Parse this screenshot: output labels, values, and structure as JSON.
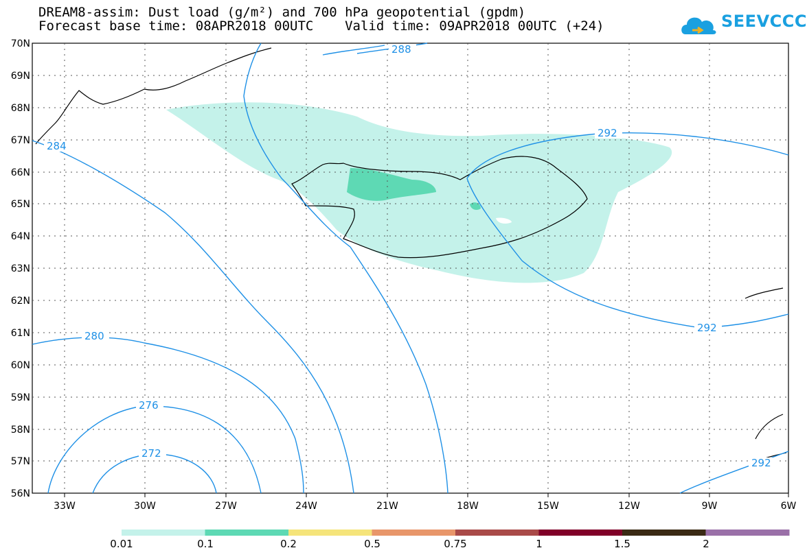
{
  "header": {
    "title_line1": "DREAM8-assim: Dust load (g/m²) and 700 hPa geopotential (gpdm)",
    "title_line2": "Forecast base time: 08APR2018 00UTC    Valid time: 09APR2018 00UTC (+24)",
    "logo_text": "SEEVCCC"
  },
  "map": {
    "lat_labels": [
      "70N",
      "69N",
      "68N",
      "67N",
      "66N",
      "65N",
      "64N",
      "63N",
      "62N",
      "61N",
      "60N",
      "59N",
      "58N",
      "57N",
      "56N"
    ],
    "lon_labels": [
      "33W",
      "30W",
      "27W",
      "24W",
      "21W",
      "18W",
      "15W",
      "12W",
      "9W",
      "6W"
    ],
    "contour_labels": [
      "288",
      "292",
      "284",
      "292",
      "280",
      "276",
      "272",
      "292"
    ]
  },
  "colorbar": {
    "labels": [
      "0.01",
      "0.1",
      "0.2",
      "0.5",
      "0.75",
      "1",
      "1.5",
      "2"
    ],
    "colors": [
      "#c4f2ea",
      "#5ed9b4",
      "#f5e47a",
      "#e8966a",
      "#a94a48",
      "#800028",
      "#3a2a14",
      "#9a70a8"
    ]
  },
  "colors": {
    "contour": "#1e90e6",
    "dust_low": "#c4f2ea",
    "dust_mid": "#5ed9b4"
  }
}
